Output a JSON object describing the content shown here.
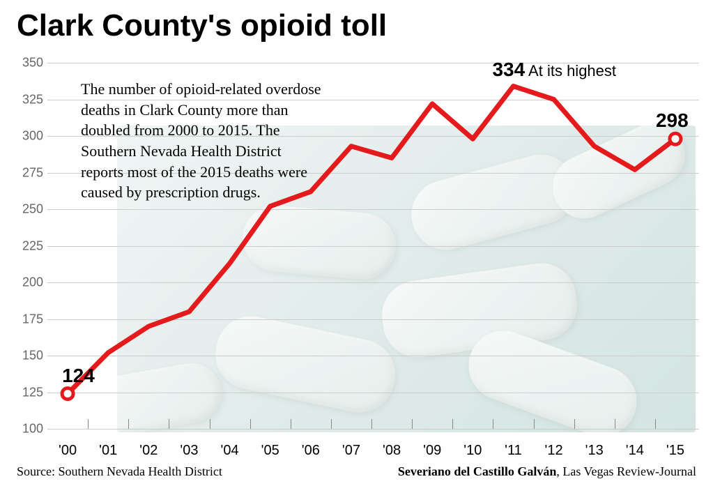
{
  "title": "Clark County's opioid toll",
  "description": "The number of opioid-related overdose deaths in Clark County more than doubled from 2000 to 2015. The Southern Nevada Health District reports most of the 2015 deaths were caused by prescription drugs.",
  "chart": {
    "type": "line",
    "years": [
      "'00",
      "'01",
      "'02",
      "'03",
      "'04",
      "'05",
      "'06",
      "'07",
      "'08",
      "'09",
      "'10",
      "'11",
      "'12",
      "'13",
      "'14",
      "'15"
    ],
    "values": [
      124,
      152,
      170,
      180,
      213,
      252,
      262,
      293,
      285,
      322,
      298,
      334,
      325,
      293,
      277,
      298
    ],
    "line_color": "#e41a1c",
    "line_width": 7,
    "marker_fill": "#ffffff",
    "marker_stroke": "#e41a1c",
    "marker_radius": 8,
    "marker_stroke_width": 5,
    "marked_indices": [
      0,
      15
    ],
    "ylim": [
      100,
      350
    ],
    "ytick_step": 25,
    "grid_color": "#cccccc",
    "background_color": "#ffffff",
    "y_label_color": "#666666",
    "x_label_color": "#000000",
    "label_fontsize": 18,
    "x_label_fontsize": 20
  },
  "callouts": [
    {
      "value": "124",
      "text": "",
      "year_index": 0
    },
    {
      "value": "334",
      "text": "At its highest",
      "year_index": 11
    },
    {
      "value": "298",
      "text": "",
      "year_index": 15
    }
  ],
  "source_label": "Source: Southern Nevada Health District",
  "credit_name": "Severiano del Castillo Galván",
  "credit_pub": ", Las Vegas Review-Journal"
}
